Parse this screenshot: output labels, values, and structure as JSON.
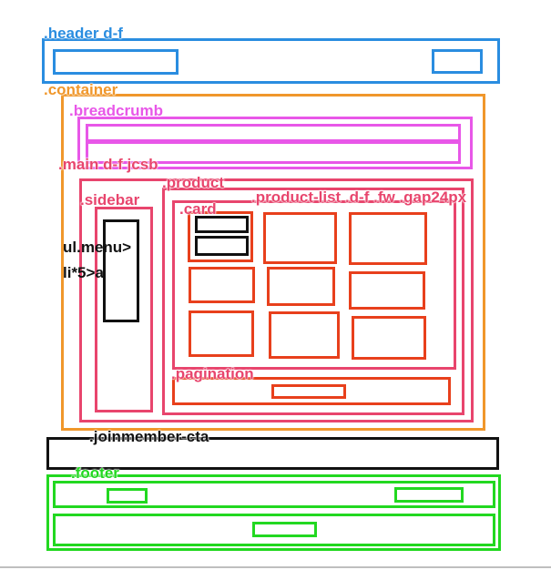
{
  "labels": {
    "header": ".header d-f",
    "container": ".container",
    "breadcrumb": ".breadcrumb",
    "main": ".main d-f jcsb",
    "product": ".product",
    "sidebar": ".sidebar",
    "product_list": ".product-list .d-f .fw .gap24px",
    "card": ".card",
    "menu_line1": "ul.menu>",
    "menu_line2": "li*5>a",
    "pagination": ".pagination",
    "joinmember": ".joinmember-cta",
    "footer": ".footer"
  },
  "colors": {
    "header": "#2a8de0",
    "container": "#f0972b",
    "breadcrumb": "#e857e8",
    "main": "#e8456d",
    "card": "#e8401c",
    "menu": "#111111",
    "footer": "#22d820"
  }
}
